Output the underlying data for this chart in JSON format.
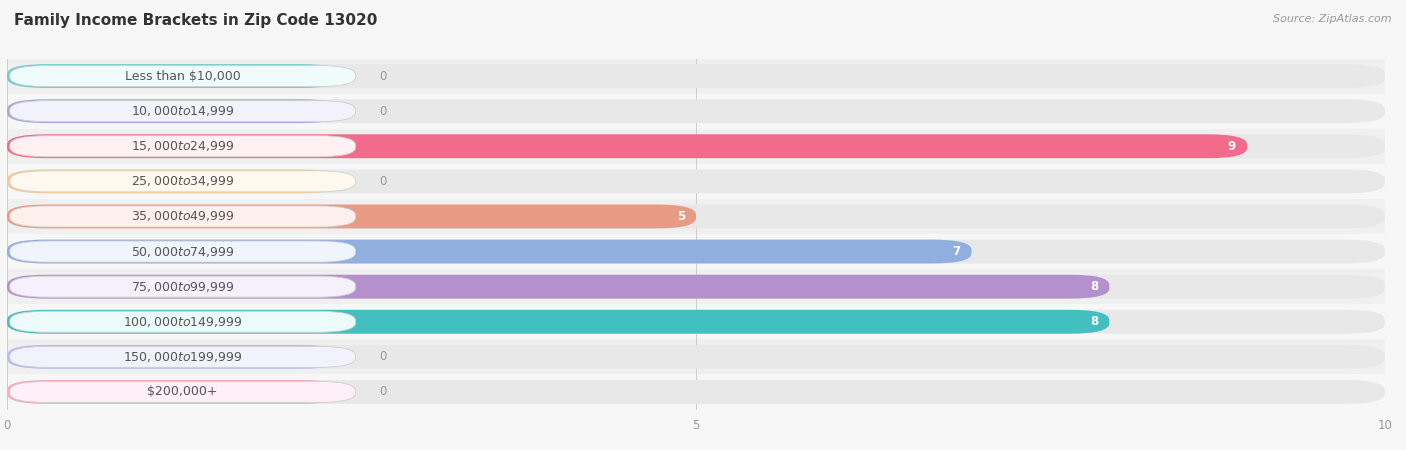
{
  "title": "Family Income Brackets in Zip Code 13020",
  "source": "Source: ZipAtlas.com",
  "categories": [
    "Less than $10,000",
    "$10,000 to $14,999",
    "$15,000 to $24,999",
    "$25,000 to $34,999",
    "$35,000 to $49,999",
    "$50,000 to $74,999",
    "$75,000 to $99,999",
    "$100,000 to $149,999",
    "$150,000 to $199,999",
    "$200,000+"
  ],
  "values": [
    0,
    0,
    9,
    0,
    5,
    7,
    8,
    8,
    0,
    0
  ],
  "bar_colors": [
    "#6dcfcf",
    "#a8aadd",
    "#f26b8a",
    "#f7cc94",
    "#e89b84",
    "#90aee0",
    "#b490cc",
    "#44bfbf",
    "#b8bced",
    "#f8aac0"
  ],
  "label_bg_colors": [
    "#f0fcfc",
    "#f2f2fc",
    "#fef0f3",
    "#fef8ee",
    "#fdf0ec",
    "#eff4fd",
    "#f6f0fc",
    "#edfafa",
    "#f2f2fc",
    "#fef0f6"
  ],
  "xlim": [
    0,
    10
  ],
  "xticks": [
    0,
    5,
    10
  ],
  "background_color": "#f7f7f7",
  "bar_bg_color": "#e8e8e8",
  "row_bg_colors": [
    "#f0f0f0",
    "#f7f7f7"
  ],
  "title_fontsize": 11,
  "source_fontsize": 8,
  "label_fontsize": 9,
  "value_fontsize": 8.5
}
